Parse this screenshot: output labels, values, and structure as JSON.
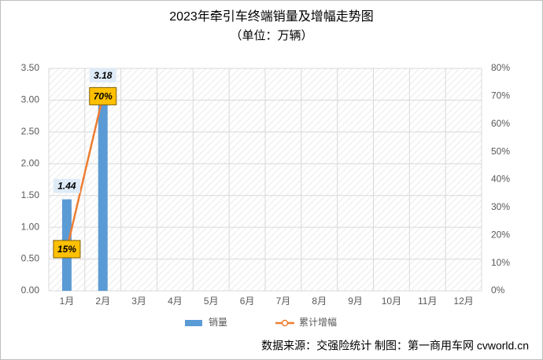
{
  "chart_data": {
    "type": "bar",
    "title": "2023年牵引车终端销量及增幅走势图",
    "subtitle": "（单位：万辆）",
    "categories": [
      "1月",
      "2月",
      "3月",
      "4月",
      "5月",
      "6月",
      "7月",
      "8月",
      "9月",
      "10月",
      "11月",
      "12月"
    ],
    "series": [
      {
        "name": "销量",
        "type": "bar",
        "color": "#5b9bd5",
        "values": [
          1.44,
          3.18,
          null,
          null,
          null,
          null,
          null,
          null,
          null,
          null,
          null,
          null
        ]
      },
      {
        "name": "累计增幅",
        "type": "line",
        "axis": "y2",
        "color": "#ed7d31",
        "values": [
          15,
          70,
          null,
          null,
          null,
          null,
          null,
          null,
          null,
          null,
          null,
          null
        ],
        "value_labels": [
          "15%",
          "70%",
          null,
          null,
          null,
          null,
          null,
          null,
          null,
          null,
          null,
          null
        ]
      }
    ],
    "ylim": [
      0,
      3.5
    ],
    "yticks": [
      {
        "value": 0,
        "label": "0.00"
      },
      {
        "value": 0.5,
        "label": "0.50"
      },
      {
        "value": 1,
        "label": "1.00"
      },
      {
        "value": 1.5,
        "label": "1.50"
      },
      {
        "value": 2,
        "label": "2.00"
      },
      {
        "value": 2.5,
        "label": "2.50"
      },
      {
        "value": 3,
        "label": "3.00"
      },
      {
        "value": 3.5,
        "label": "3.50"
      }
    ],
    "y2lim": [
      0,
      80
    ],
    "y2ticks": [
      {
        "value": 0,
        "label": "0%"
      },
      {
        "value": 10,
        "label": "10%"
      },
      {
        "value": 20,
        "label": "20%"
      },
      {
        "value": 30,
        "label": "30%"
      },
      {
        "value": 40,
        "label": "40%"
      },
      {
        "value": 50,
        "label": "50%"
      },
      {
        "value": 60,
        "label": "60%"
      },
      {
        "value": 70,
        "label": "70%"
      },
      {
        "value": 80,
        "label": "80%"
      }
    ],
    "grid": true,
    "legend": "bottom",
    "annotation": "数据来源：交强险统计  制图：第一商用车网 cvworld.cn"
  }
}
